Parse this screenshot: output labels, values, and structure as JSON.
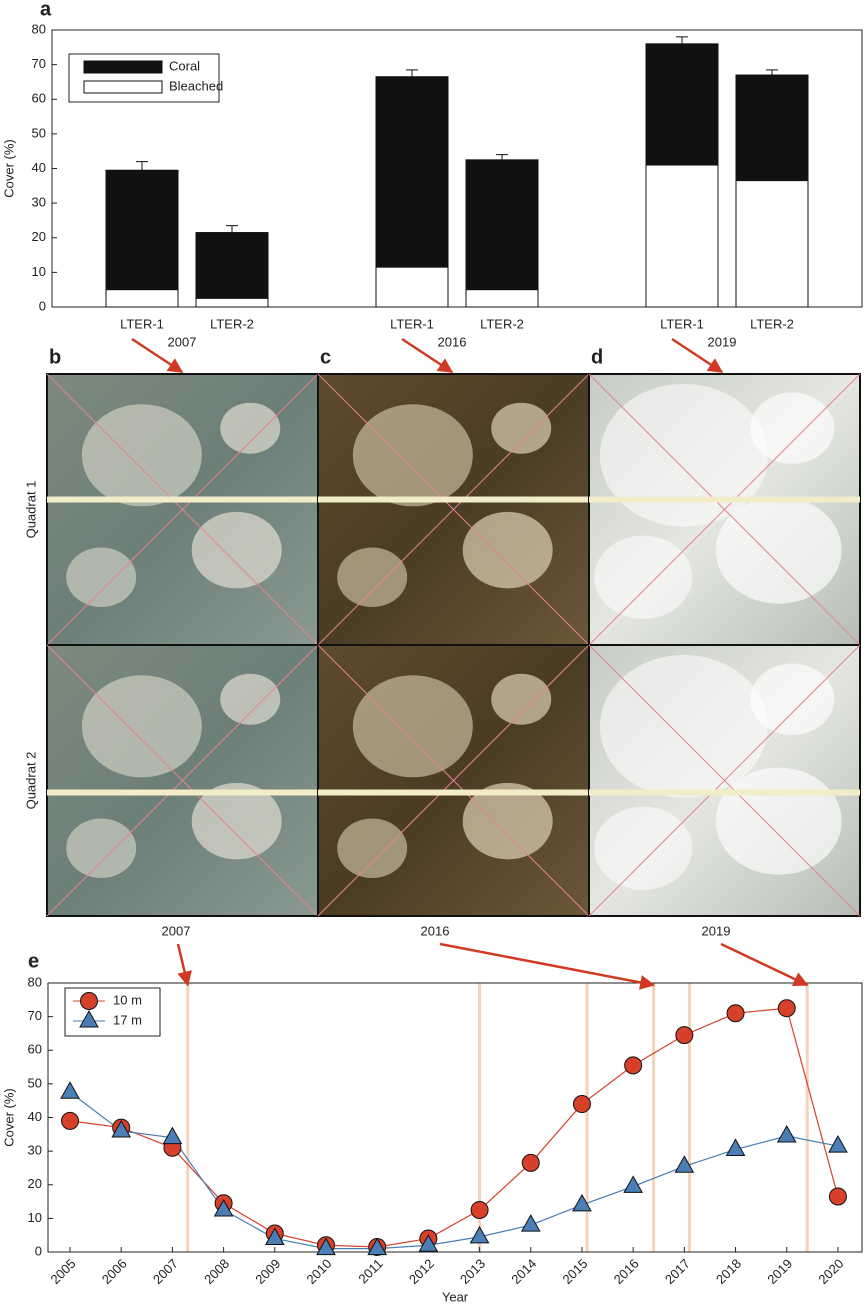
{
  "chart_data": [
    {
      "type": "bar",
      "panel_label": "a",
      "y_label": "Cover (%)",
      "categories": [
        "LTER-1",
        "LTER-2",
        "LTER-1",
        "LTER-2",
        "LTER-1",
        "LTER-2"
      ],
      "groups": [
        "2007",
        "2016",
        "2019"
      ],
      "overlay": true,
      "series": [
        {
          "name": "Coral",
          "color": "#111111",
          "values": [
            39.5,
            21.5,
            66.5,
            42.5,
            76,
            67
          ],
          "errors": [
            2.5,
            2,
            2,
            1.5,
            2,
            1.5
          ]
        },
        {
          "name": "Bleached",
          "color": "#ffffff",
          "values": [
            5,
            2.5,
            11.5,
            5,
            41,
            36.5
          ],
          "errors": [
            1,
            0.8,
            1.8,
            0.7,
            3,
            2
          ]
        }
      ],
      "ylim": [
        0,
        80
      ],
      "yticks": [
        0,
        10,
        20,
        30,
        40,
        50,
        60,
        70,
        80
      ],
      "legend": "upper left"
    },
    {
      "type": "line",
      "panel_label": "e",
      "x_label": "Year",
      "y_label": "Cover (%)",
      "x": [
        2005,
        2006,
        2007,
        2008,
        2009,
        2010,
        2011,
        2012,
        2013,
        2014,
        2015,
        2016,
        2017,
        2018,
        2019,
        2020
      ],
      "series": [
        {
          "name": "10 m",
          "color": "#d7402b",
          "marker": "circle",
          "values": [
            39,
            37,
            31,
            14.5,
            5.5,
            2,
            1.5,
            4,
            12.5,
            26.5,
            44,
            55.5,
            64.5,
            71,
            72.5,
            16.5
          ]
        },
        {
          "name": "17 m",
          "color": "#4a7eb5",
          "marker": "triangle",
          "values": [
            47.5,
            36,
            34,
            12.5,
            4,
            1,
            1,
            2,
            4.5,
            8,
            14,
            19.5,
            25.5,
            30.5,
            34.5,
            31.5
          ]
        }
      ],
      "xlim": [
        2004.57,
        2020.47
      ],
      "xticks": [
        2005,
        2006,
        2007,
        2008,
        2009,
        2010,
        2011,
        2012,
        2013,
        2014,
        2015,
        2016,
        2017,
        2018,
        2019,
        2020
      ],
      "ylim": [
        0,
        80
      ],
      "yticks": [
        0,
        10,
        20,
        30,
        40,
        50,
        60,
        70,
        80
      ],
      "event_lines": [
        2007.3,
        2013,
        2015.1,
        2016.4,
        2017.1,
        2019.4
      ],
      "annotations": [
        {
          "text": "2007",
          "x": 2007.3
        },
        {
          "text": "2016",
          "x": 2016.4
        },
        {
          "text": "2019",
          "x": 2019.4
        }
      ],
      "legend": "upper left"
    }
  ],
  "photos": {
    "columns": [
      {
        "label": "b"
      },
      {
        "label": "c"
      },
      {
        "label": "d"
      }
    ],
    "rows": [
      "Quadrat 1",
      "Quadrat 2"
    ]
  }
}
